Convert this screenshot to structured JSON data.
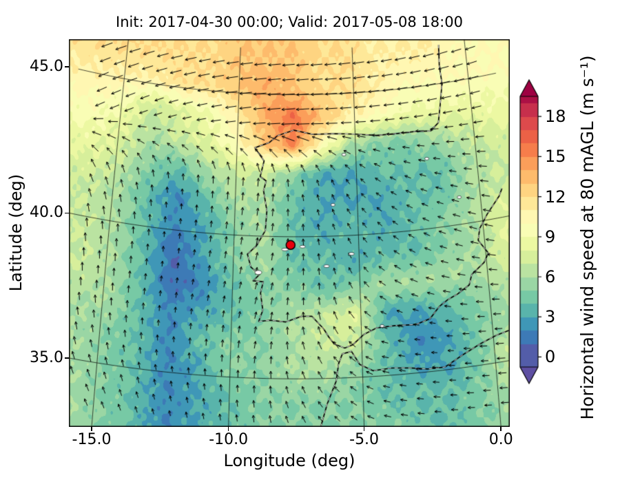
{
  "chart_data": {
    "type": "heatmap",
    "title": "Init: 2017-04-30 00:00; Valid: 2017-05-08 18:00",
    "xlabel": "Longitude (deg)",
    "ylabel": "Latitude (deg)",
    "grid_on": true,
    "x_ticks": [
      -15.0,
      -10.0,
      -5.0,
      0.0
    ],
    "x_tick_labels": [
      "-15.0",
      "-10.0",
      "-5.0",
      "0.0"
    ],
    "y_ticks": [
      35.0,
      40.0,
      45.0
    ],
    "y_tick_labels": [
      "35.0",
      "40.0",
      "45.0"
    ],
    "lon_range": [
      -15.9,
      0.4
    ],
    "lat_range": [
      32.7,
      46.3
    ],
    "units": "m s⁻¹",
    "colorbar": {
      "label": "Horizontal wind speed at 80 mAGL (m s⁻¹)",
      "ticks": [
        0,
        3,
        6,
        9,
        12,
        15,
        18
      ],
      "tick_labels": [
        "0",
        "3",
        "6",
        "9",
        "12",
        "15",
        "18"
      ],
      "vmin": 0,
      "vmax": 19.5,
      "extend": "both",
      "palette": [
        "#5e4fa2",
        "#3288bd",
        "#66c2a5",
        "#abdda4",
        "#e6f598",
        "#ffffbf",
        "#fee08b",
        "#fdae61",
        "#f46d43",
        "#d53e4f",
        "#9e0142"
      ]
    },
    "marker": {
      "lon": -7.73,
      "lat": 39.71,
      "color": "#e8000b",
      "edge_color": "#000000"
    },
    "wind_speed_grid": {
      "lons": [
        -16,
        -14.8,
        -13.6,
        -12.4,
        -11.2,
        -10,
        -8.8,
        -7.6,
        -6.4,
        -5.2,
        -4,
        -2.8,
        -1.6,
        -0.4,
        0.8
      ],
      "lats": [
        46.2,
        45.2,
        44.2,
        43.2,
        42.2,
        41.2,
        40.2,
        39.2,
        38.2,
        37.2,
        36.2,
        35.2,
        34.2,
        33.2
      ],
      "values": [
        [
          12,
          12,
          12,
          12,
          12,
          13,
          13,
          13,
          12,
          12,
          11,
          11,
          11,
          10,
          10
        ],
        [
          11,
          11,
          11,
          12,
          12,
          13,
          14,
          13,
          12,
          12,
          11,
          10,
          10,
          10,
          10
        ],
        [
          10,
          9,
          7,
          8,
          9,
          11,
          14,
          16,
          13,
          11,
          10,
          9,
          9,
          9,
          9
        ],
        [
          9,
          8,
          6,
          7,
          8,
          10,
          13,
          15,
          10,
          6,
          5,
          5,
          6,
          7,
          8
        ],
        [
          8,
          7,
          5,
          4,
          6,
          7,
          7,
          5,
          3,
          3,
          4,
          4,
          4,
          6,
          7
        ],
        [
          7,
          6,
          4,
          2,
          4,
          6,
          6,
          4,
          3,
          3,
          3,
          4,
          4,
          6,
          7
        ],
        [
          7,
          6,
          4,
          2,
          3,
          5,
          6,
          4,
          3,
          4,
          3,
          4,
          5,
          6,
          8
        ],
        [
          7,
          6,
          4,
          1,
          3,
          5,
          6,
          4,
          4,
          3,
          4,
          4,
          5,
          6,
          8
        ],
        [
          7,
          6,
          4,
          1,
          2,
          4,
          5,
          5,
          4,
          5,
          6,
          6,
          6,
          6,
          7
        ],
        [
          6,
          6,
          4,
          2,
          3,
          4,
          5,
          6,
          7,
          8,
          3,
          3,
          4,
          5,
          6
        ],
        [
          6,
          5,
          4,
          2,
          4,
          5,
          5,
          6,
          7,
          7,
          4,
          2,
          3,
          5,
          6
        ],
        [
          6,
          5,
          4,
          2,
          3,
          5,
          5,
          6,
          6,
          5,
          4,
          3,
          3,
          5,
          8
        ],
        [
          6,
          5,
          4,
          2,
          3,
          4,
          5,
          5,
          5,
          5,
          4,
          4,
          4,
          5,
          7
        ],
        [
          6,
          5,
          4,
          2,
          3,
          4,
          5,
          5,
          5,
          5,
          5,
          4,
          4,
          5,
          6
        ]
      ]
    },
    "wind_direction_grid": {
      "comment": "arrow direction, degrees CCW from east (flow toward)",
      "lons": [
        -16,
        -13.6,
        -11.2,
        -8.8,
        -6.4,
        -4,
        -1.6,
        0.8
      ],
      "lats": [
        46,
        44,
        42,
        40,
        38,
        36,
        34
      ],
      "values": [
        [
          200,
          195,
          190,
          185,
          185,
          190,
          195,
          200
        ],
        [
          205,
          200,
          190,
          185,
          182,
          185,
          190,
          195
        ],
        [
          120,
          100,
          90,
          85,
          110,
          150,
          170,
          180
        ],
        [
          95,
          90,
          85,
          80,
          100,
          140,
          160,
          170
        ],
        [
          90,
          85,
          80,
          75,
          95,
          150,
          170,
          180
        ],
        [
          100,
          95,
          90,
          80,
          120,
          170,
          180,
          185
        ],
        [
          115,
          108,
          100,
          95,
          130,
          170,
          180,
          185
        ]
      ]
    },
    "coastlines": {
      "iberia_france": [
        [
          -1.15,
          46.35
        ],
        [
          -1.2,
          45.6
        ],
        [
          -1.15,
          45.0
        ],
        [
          -1.3,
          44.3
        ],
        [
          -1.45,
          43.65
        ],
        [
          -1.8,
          43.4
        ],
        [
          -2.5,
          43.45
        ],
        [
          -3.2,
          43.45
        ],
        [
          -4.1,
          43.45
        ],
        [
          -5.0,
          43.55
        ],
        [
          -5.9,
          43.6
        ],
        [
          -6.8,
          43.6
        ],
        [
          -7.6,
          43.75
        ],
        [
          -8.3,
          43.55
        ],
        [
          -8.65,
          43.3
        ],
        [
          -9.25,
          43.1
        ],
        [
          -8.85,
          42.65
        ],
        [
          -9.0,
          42.1
        ],
        [
          -8.75,
          41.95
        ],
        [
          -8.85,
          41.6
        ],
        [
          -8.7,
          40.9
        ],
        [
          -8.75,
          40.2
        ],
        [
          -9.1,
          39.65
        ],
        [
          -9.45,
          39.35
        ],
        [
          -9.3,
          38.9
        ],
        [
          -8.95,
          38.65
        ],
        [
          -9.2,
          38.42
        ],
        [
          -8.8,
          38.4
        ],
        [
          -8.9,
          38.0
        ],
        [
          -8.8,
          37.4
        ],
        [
          -8.95,
          37.0
        ],
        [
          -8.5,
          37.05
        ],
        [
          -7.9,
          37.0
        ],
        [
          -7.3,
          37.2
        ],
        [
          -6.9,
          37.2
        ],
        [
          -6.45,
          36.75
        ],
        [
          -6.25,
          36.45
        ],
        [
          -6.05,
          36.2
        ],
        [
          -5.65,
          36.05
        ],
        [
          -5.35,
          36.15
        ],
        [
          -4.9,
          36.5
        ],
        [
          -4.4,
          36.7
        ],
        [
          -3.7,
          36.73
        ],
        [
          -2.9,
          36.7
        ],
        [
          -2.35,
          36.85
        ],
        [
          -1.95,
          37.25
        ],
        [
          -1.6,
          37.45
        ],
        [
          -1.25,
          37.58
        ],
        [
          -0.75,
          37.85
        ],
        [
          -0.62,
          38.2
        ],
        [
          -0.1,
          38.55
        ],
        [
          0.1,
          38.85
        ],
        [
          -0.25,
          39.35
        ],
        [
          -0.15,
          39.75
        ],
        [
          0.2,
          40.2
        ],
        [
          0.75,
          40.75
        ],
        [
          0.9,
          41.0
        ]
      ],
      "north_africa": [
        [
          -6.6,
          33.3
        ],
        [
          -6.35,
          34.1
        ],
        [
          -6.0,
          34.9
        ],
        [
          -5.9,
          35.5
        ],
        [
          -5.75,
          35.85
        ],
        [
          -5.4,
          35.92
        ],
        [
          -5.1,
          35.45
        ],
        [
          -4.6,
          35.2
        ],
        [
          -3.9,
          35.25
        ],
        [
          -3.2,
          35.2
        ],
        [
          -2.55,
          35.1
        ],
        [
          -1.9,
          35.1
        ],
        [
          -1.2,
          35.45
        ],
        [
          -0.5,
          35.75
        ],
        [
          0.1,
          35.95
        ],
        [
          0.9,
          36.1
        ]
      ]
    },
    "lakes": [
      [
        -7.95,
        39.55,
        5,
        2
      ],
      [
        -7.25,
        39.65,
        4,
        2
      ],
      [
        -6.3,
        38.95,
        4,
        2
      ],
      [
        -5.3,
        39.35,
        4,
        2
      ],
      [
        -9.0,
        38.72,
        5,
        3
      ],
      [
        -6.0,
        41.1,
        3,
        2
      ],
      [
        -0.85,
        40.95,
        3,
        2
      ],
      [
        -4.2,
        36.75,
        3,
        2
      ],
      [
        -2.05,
        42.45,
        3,
        2
      ],
      [
        -5.5,
        42.85,
        3,
        2
      ]
    ]
  }
}
